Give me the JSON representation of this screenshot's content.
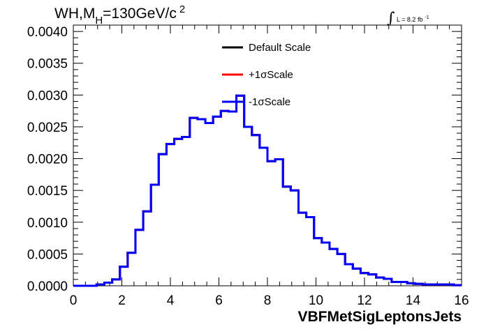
{
  "chart_data": {
    "type": "line",
    "title": {
      "prefix": "WH,M",
      "subscript": "H",
      "middle": "=130GeV/c",
      "superscript": "2"
    },
    "annotation": {
      "integral_symbol": "∫",
      "text": "L = 8.2 fb",
      "superscript": "-1"
    },
    "xlabel": "VBFMetSigLeptonsJets",
    "ylabel": "",
    "xlim": [
      0,
      16
    ],
    "ylim": [
      0,
      0.0041
    ],
    "x_ticks": [
      0,
      2,
      4,
      6,
      8,
      10,
      12,
      14,
      16
    ],
    "x_tick_labels": [
      "0",
      "2",
      "4",
      "6",
      "8",
      "10",
      "12",
      "14",
      "16"
    ],
    "y_ticks": [
      0,
      0.0005,
      0.001,
      0.0015,
      0.002,
      0.0025,
      0.003,
      0.0035,
      0.004
    ],
    "y_tick_labels": [
      "0.0000",
      "0.0005",
      "0.0010",
      "0.0015",
      "0.0020",
      "0.0025",
      "0.0030",
      "0.0035",
      "0.0040"
    ],
    "bin_width": 0.32,
    "bin_edges_start": 0,
    "legend_position": "top-center",
    "series": [
      {
        "name": "Default Scale",
        "color": "#000000",
        "values": [
          0.0,
          0.0,
          0.0,
          2e-05,
          5e-05,
          0.0001,
          0.0003,
          0.00052,
          0.00088,
          0.00117,
          0.00159,
          0.00207,
          0.00223,
          0.00231,
          0.00234,
          0.00264,
          0.00262,
          0.00256,
          0.00266,
          0.00275,
          0.00274,
          0.00299,
          0.0025,
          0.00237,
          0.00217,
          0.00196,
          0.00199,
          0.00156,
          0.0015,
          0.00115,
          0.00108,
          0.00075,
          0.00068,
          0.00058,
          0.0005,
          0.00034,
          0.00027,
          0.0002,
          0.00018,
          0.00013,
          0.00011,
          6e-05,
          6e-05,
          4e-05,
          3e-05,
          2e-05,
          2e-05,
          2e-05,
          2e-05,
          1e-05
        ]
      },
      {
        "name": "+1σScale",
        "color": "#ff0000",
        "values": [
          0.0,
          0.0,
          0.0,
          2e-05,
          5e-05,
          0.0001,
          0.0003,
          0.00052,
          0.00088,
          0.00117,
          0.00159,
          0.00207,
          0.00223,
          0.00231,
          0.00234,
          0.00264,
          0.00262,
          0.00256,
          0.00266,
          0.00275,
          0.00274,
          0.00299,
          0.0025,
          0.00237,
          0.00217,
          0.00196,
          0.00199,
          0.00156,
          0.0015,
          0.00115,
          0.00108,
          0.00075,
          0.00068,
          0.00058,
          0.0005,
          0.00034,
          0.00027,
          0.0002,
          0.00018,
          0.00013,
          0.00011,
          6e-05,
          6e-05,
          4e-05,
          3e-05,
          2e-05,
          2e-05,
          2e-05,
          2e-05,
          1e-05
        ]
      },
      {
        "name": "-1σScale",
        "color": "#0000ff",
        "values": [
          0.0,
          0.0,
          0.0,
          2e-05,
          5e-05,
          0.0001,
          0.0003,
          0.00052,
          0.00088,
          0.00117,
          0.00159,
          0.00207,
          0.00223,
          0.00231,
          0.00234,
          0.00264,
          0.00262,
          0.00256,
          0.00266,
          0.00275,
          0.00274,
          0.00299,
          0.0025,
          0.00237,
          0.00217,
          0.00196,
          0.00199,
          0.00156,
          0.0015,
          0.00115,
          0.00108,
          0.00075,
          0.00068,
          0.00058,
          0.0005,
          0.00034,
          0.00027,
          0.0002,
          0.00018,
          0.00013,
          0.00011,
          6e-05,
          6e-05,
          4e-05,
          3e-05,
          2e-05,
          2e-05,
          2e-05,
          2e-05,
          1e-05
        ]
      }
    ]
  }
}
